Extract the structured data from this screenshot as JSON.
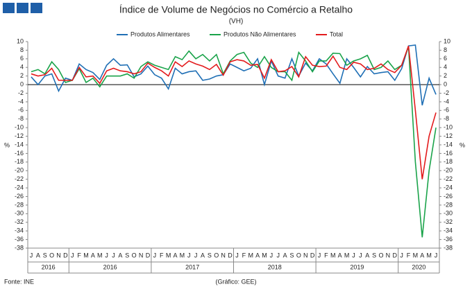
{
  "chart_data": {
    "type": "line",
    "title": "Índice de Volume  de Negócios no Comércio a Retalho",
    "subtitle": "(VH)",
    "y_label": "%",
    "y2_label": "%",
    "source": "Fonte: INE",
    "credit": "(Gráfico: GEE)",
    "categories": [
      "J",
      "A",
      "S",
      "O",
      "N",
      "D",
      "J",
      "F",
      "M",
      "A",
      "M",
      "J",
      "J",
      "A",
      "S",
      "O",
      "N",
      "D",
      "J",
      "F",
      "M",
      "A",
      "M",
      "J",
      "J",
      "A",
      "S",
      "O",
      "N",
      "D",
      "J",
      "F",
      "M",
      "A",
      "M",
      "J",
      "J",
      "A",
      "S",
      "O",
      "N",
      "D",
      "J",
      "F",
      "M",
      "A",
      "M",
      "J",
      "J",
      "A",
      "S",
      "O",
      "N",
      "D",
      "J",
      "F",
      "M",
      "A",
      "M",
      "J"
    ],
    "year_labels": [
      "2016",
      "2016",
      "2017",
      "2018",
      "2019",
      "2020"
    ],
    "series": [
      {
        "name": "Produtos Alimentares",
        "color": "#1f6fb5",
        "values": [
          1.8,
          0,
          2,
          2.5,
          -1.5,
          1.5,
          1,
          4.8,
          3.5,
          2.8,
          1.2,
          4.5,
          6,
          4.5,
          4.6,
          1.8,
          2.5,
          4.3,
          2.3,
          1.5,
          -1,
          3.8,
          2.5,
          3,
          3.2,
          1,
          1.3,
          2,
          2.3,
          4.8,
          4,
          3.2,
          3.8,
          6,
          0,
          5.5,
          2,
          1.5,
          6,
          2,
          5,
          3.2,
          6,
          4.8,
          2.5,
          0.3,
          6,
          4,
          1.8,
          4.2,
          2.5,
          2.8,
          3,
          1,
          3.7,
          9,
          9.2,
          -4.8,
          1.5,
          -2.3
        ]
      },
      {
        "name": "Produtos Não Alimentares",
        "color": "#1aa34a",
        "values": [
          3,
          3.5,
          2.5,
          5.3,
          3.5,
          0.5,
          1,
          3.7,
          0.5,
          1.5,
          -0.5,
          2,
          2,
          2,
          2.5,
          1.5,
          4.2,
          5.3,
          4.5,
          4,
          3.5,
          6.5,
          5.8,
          7.8,
          6,
          7,
          5.5,
          7,
          2.5,
          5.5,
          7,
          7.5,
          5,
          4,
          6.5,
          4,
          3,
          3,
          1,
          7.5,
          5.5,
          3,
          5.5,
          5.5,
          7.3,
          7.2,
          4.5,
          5.5,
          6,
          6.8,
          3.5,
          4,
          5.5,
          3.5,
          4.5,
          8.8,
          -18,
          -35.5,
          -20,
          -10
        ]
      },
      {
        "name": "Total",
        "color": "#e31a1c",
        "values": [
          2.5,
          2,
          2.3,
          3.8,
          1,
          1,
          1,
          4,
          1.8,
          2,
          0.3,
          3.2,
          3.8,
          3.2,
          3,
          2.5,
          3,
          5,
          4,
          3.2,
          2,
          5.3,
          4.2,
          5.5,
          4.8,
          4.3,
          3.5,
          4.7,
          2.2,
          5.3,
          5.8,
          5.5,
          4.5,
          4.7,
          1.5,
          5.8,
          3,
          3.2,
          4.2,
          1.8,
          6.5,
          4.5,
          4.2,
          4.3,
          6.6,
          4,
          3.5,
          5.2,
          4.8,
          3.5,
          3.8,
          4.8,
          3.5,
          2.8,
          4.5,
          9,
          -6,
          -22,
          -12,
          -6.5
        ]
      }
    ],
    "ylim": [
      -38,
      10
    ],
    "yticks": [
      -38,
      -36,
      -34,
      -32,
      -30,
      -28,
      -26,
      -24,
      -22,
      -20,
      -18,
      -16,
      -14,
      -12,
      -10,
      -8,
      -6,
      -4,
      -2,
      0,
      2,
      4,
      6,
      8,
      10
    ],
    "y2lim": [
      -38,
      10
    ],
    "y2ticks": [
      -38,
      -36,
      -34,
      -32,
      -30,
      -28,
      -26,
      -24,
      -22,
      -20,
      -18,
      -16,
      -14,
      -12,
      -10,
      -8,
      -6,
      -4,
      -2,
      0,
      2,
      4,
      6,
      8,
      10
    ]
  }
}
